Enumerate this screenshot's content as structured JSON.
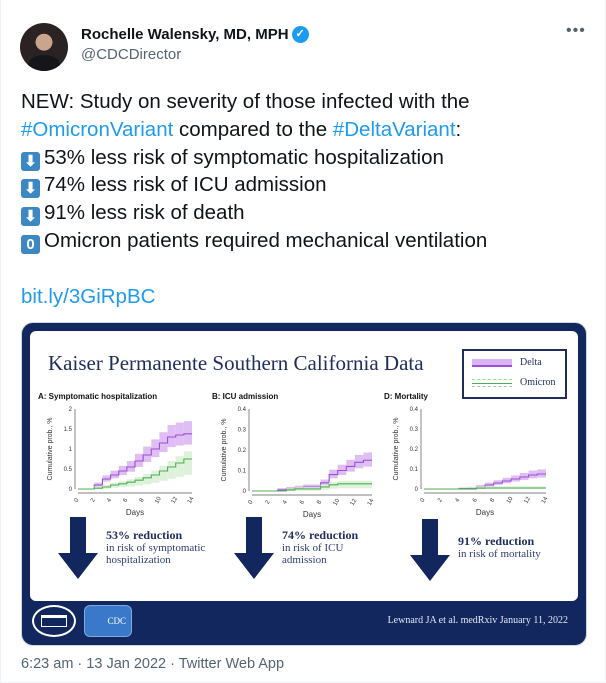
{
  "author": {
    "name": "Rochelle Walensky, MD, MPH",
    "handle": "@CDCDirector",
    "verified": true
  },
  "more_icon": "ellipsis-icon",
  "tweet": {
    "intro": "NEW: Study on severity of those infected with the",
    "hashtag1": "#OmicronVariant",
    "mid": " compared to the ",
    "hashtag2": "#DeltaVariant",
    "colon": ":",
    "bullets": [
      {
        "icon": "⬇",
        "text": "53% less risk of symptomatic hospitalization"
      },
      {
        "icon": "⬇",
        "text": "74% less risk of ICU admission"
      },
      {
        "icon": "⬇",
        "text": "91% less risk of death"
      },
      {
        "icon": "0",
        "text": "Omicron patients required mechanical ventilation"
      }
    ],
    "link": "bit.ly/3GiRpBC"
  },
  "media": {
    "title": "Kaiser Permanente Southern California Data",
    "legend": [
      "Delta",
      "Omicron"
    ],
    "colors": {
      "delta": "#9b4fd6",
      "delta_band": "#d9b3f2",
      "omicron": "#4fae4f",
      "omicron_band": "#d6efd2",
      "navy": "#12275e"
    },
    "reductions": [
      {
        "pct": "53% reduction",
        "desc1": "in risk of symptomatic",
        "desc2": "hospitalization"
      },
      {
        "pct": "74% reduction",
        "desc1": "in risk of ICU",
        "desc2": "admission"
      },
      {
        "pct": "91% reduction",
        "desc1": "in risk of mortality",
        "desc2": ""
      }
    ],
    "footer_logos": [
      "White House seal",
      "CDC"
    ],
    "cdc_label": "CDC",
    "citation": "Lewnard JA et al. medRxiv January 11, 2022"
  },
  "chart_data": [
    {
      "type": "line",
      "title": "A: Symptomatic hospitalization",
      "xlabel": "Days",
      "ylabel": "Cumulative prob., %",
      "xlim": [
        0,
        14
      ],
      "ylim": [
        0,
        2
      ],
      "xticks": [
        "0",
        "2",
        "4",
        "6",
        "8",
        "10",
        "12",
        "14"
      ],
      "yticks": [
        "0",
        "0.5",
        "1",
        "1.5",
        "2"
      ],
      "x": [
        0,
        1,
        2,
        3,
        4,
        5,
        6,
        7,
        8,
        9,
        10,
        11,
        12,
        13,
        14
      ],
      "series": [
        {
          "name": "Delta",
          "values": [
            0,
            0,
            0.1,
            0.25,
            0.35,
            0.45,
            0.55,
            0.7,
            0.85,
            1.0,
            1.15,
            1.3,
            1.35,
            1.38,
            1.4
          ]
        },
        {
          "name": "Omicron",
          "values": [
            0,
            0,
            0.02,
            0.05,
            0.1,
            0.13,
            0.17,
            0.22,
            0.28,
            0.35,
            0.45,
            0.55,
            0.65,
            0.75,
            0.82
          ]
        }
      ]
    },
    {
      "type": "line",
      "title": "B: ICU admission",
      "xlabel": "Days",
      "ylabel": "Cumulative prob., %",
      "xlim": [
        0,
        14
      ],
      "ylim": [
        0,
        0.4
      ],
      "xticks": [
        "0",
        "2",
        "4",
        "6",
        "8",
        "10",
        "12",
        "14"
      ],
      "yticks": [
        "0",
        "0.1",
        "0.2",
        "0.3",
        "0.4"
      ],
      "x": [
        0,
        1,
        2,
        3,
        4,
        5,
        6,
        7,
        8,
        9,
        10,
        11,
        12,
        13,
        14
      ],
      "series": [
        {
          "name": "Delta",
          "values": [
            0,
            0,
            0,
            0.005,
            0.01,
            0.015,
            0.02,
            0.02,
            0.04,
            0.08,
            0.1,
            0.12,
            0.14,
            0.15,
            0.16
          ]
        },
        {
          "name": "Omicron",
          "values": [
            0,
            0,
            0,
            0,
            0.005,
            0.01,
            0.01,
            0.01,
            0.02,
            0.03,
            0.035,
            0.035,
            0.035,
            0.035,
            0.035
          ]
        }
      ]
    },
    {
      "type": "line",
      "title": "D: Mortality",
      "xlabel": "Days",
      "ylabel": "Cumulative prob., %",
      "xlim": [
        0,
        14
      ],
      "ylim": [
        0,
        0.4
      ],
      "xticks": [
        "0",
        "2",
        "4",
        "6",
        "8",
        "10",
        "12",
        "14"
      ],
      "yticks": [
        "0",
        "0.1",
        "0.2",
        "0.3",
        "0.4"
      ],
      "x": [
        0,
        1,
        2,
        3,
        4,
        5,
        6,
        7,
        8,
        9,
        10,
        11,
        12,
        13,
        14
      ],
      "series": [
        {
          "name": "Delta",
          "values": [
            0,
            0,
            0,
            0,
            0,
            0,
            0.01,
            0.02,
            0.03,
            0.04,
            0.05,
            0.06,
            0.07,
            0.075,
            0.075
          ]
        },
        {
          "name": "Omicron",
          "values": [
            0,
            0,
            0,
            0,
            0.002,
            0.003,
            0.004,
            0.005,
            0.005,
            0.005,
            0.005,
            0.005,
            0.005,
            0.005,
            0.005
          ]
        }
      ]
    }
  ],
  "footer": {
    "time": "6:23 am",
    "sep": " · ",
    "date": "13 Jan 2022",
    "source": "Twitter Web App"
  }
}
